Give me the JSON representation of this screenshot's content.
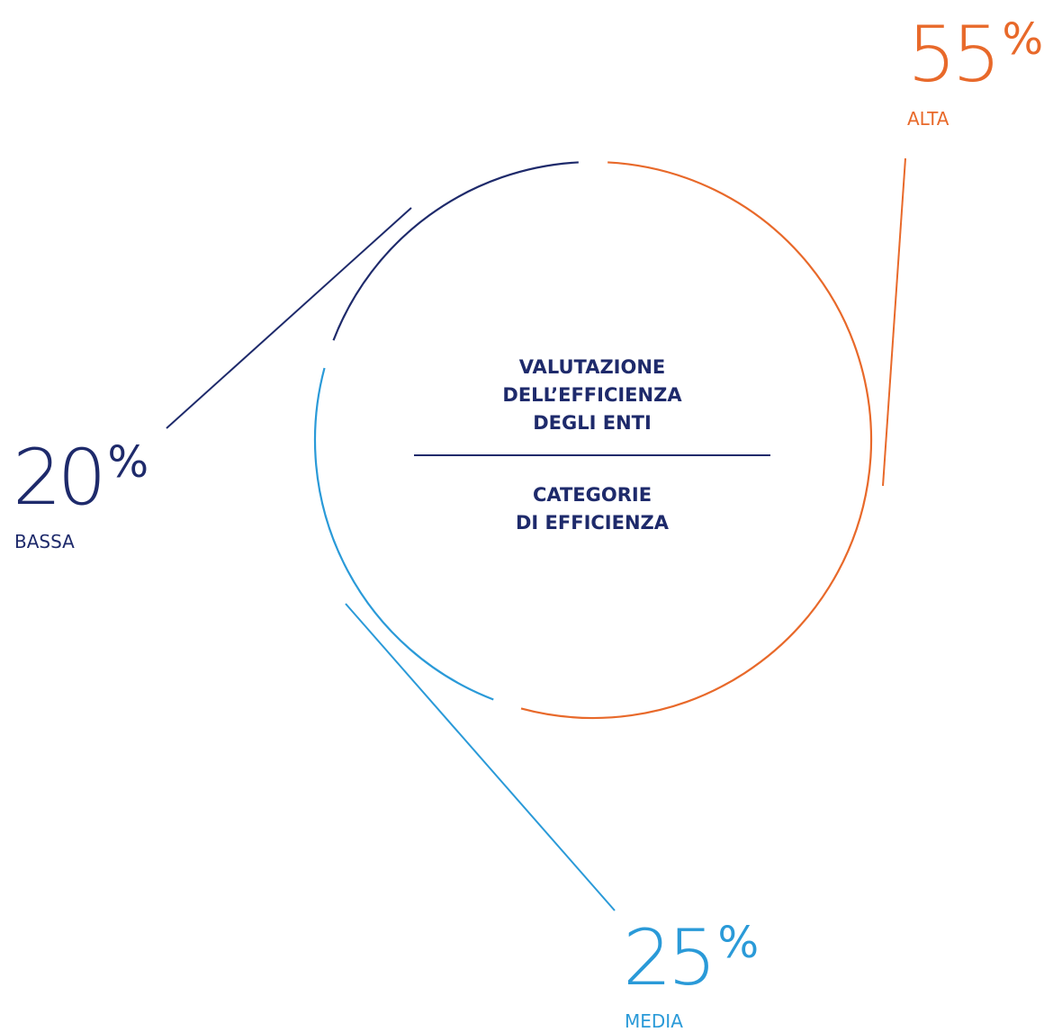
{
  "chart_data": {
    "type": "pie",
    "title": "VALUTAZIONE\nDELL’EFFICIENZA\nDEGLI ENTI",
    "subtitle": "CATEGORIE\nDI EFFICIENZA",
    "unit": "%",
    "series": [
      {
        "name": "ALTA",
        "value": 55,
        "color": "#e8692a"
      },
      {
        "name": "MEDIA",
        "value": 25,
        "color": "#2a9ad8"
      },
      {
        "name": "BASSA",
        "value": 20,
        "color": "#1e2a6b"
      }
    ]
  }
}
